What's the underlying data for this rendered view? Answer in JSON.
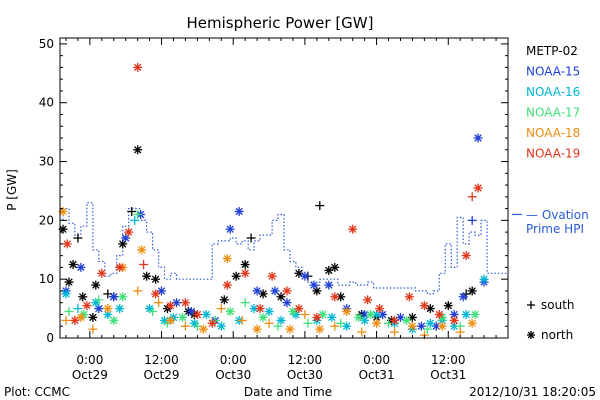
{
  "chart_data": {
    "type": "scatter",
    "title": "Hemispheric Power [GW]",
    "ylabel": "P [GW]",
    "xlabel": "Date and Time",
    "ylim": [
      0,
      51
    ],
    "xlim_hours": [
      -5,
      70
    ],
    "yticks": [
      0,
      10,
      20,
      30,
      40,
      50
    ],
    "xticks": [
      {
        "t": 0,
        "time": "0:00",
        "date": "Oct29"
      },
      {
        "t": 12,
        "time": "12:00",
        "date": "Oct29"
      },
      {
        "t": 24,
        "time": "0:00",
        "date": "Oct30"
      },
      {
        "t": 36,
        "time": "12:00",
        "date": "Oct30"
      },
      {
        "t": 48,
        "time": "0:00",
        "date": "Oct31"
      },
      {
        "t": 60,
        "time": "12:00",
        "date": "Oct31"
      }
    ],
    "x_units": "hours since 2012-10-29 00:00 UT",
    "legend_position": "right",
    "symbol_legend": [
      {
        "symbol": "+",
        "label": "south"
      },
      {
        "symbol": "*",
        "label": "north"
      }
    ],
    "footer": {
      "left": "Plot: CCMC",
      "right": "2012/10/31 18:20:05"
    },
    "ovation": {
      "label_line1": "— Ovation",
      "label_line2": "Prime HPI",
      "color": "#2a5bd7",
      "end_value": 21,
      "steps": [
        [
          -5,
          20
        ],
        [
          -4.5,
          22
        ],
        [
          -3.5,
          19.5
        ],
        [
          -2.5,
          17.5
        ],
        [
          -1.5,
          19
        ],
        [
          -0.5,
          23
        ],
        [
          0.5,
          15
        ],
        [
          1.5,
          13
        ],
        [
          2.5,
          10.5
        ],
        [
          3.5,
          11
        ],
        [
          4.5,
          14
        ],
        [
          5.5,
          19
        ],
        [
          6.5,
          22
        ],
        [
          7.5,
          22
        ],
        [
          8.5,
          20
        ],
        [
          9.5,
          18
        ],
        [
          10.5,
          15
        ],
        [
          11.5,
          12
        ],
        [
          12.5,
          10
        ],
        [
          13.5,
          11
        ],
        [
          14.5,
          10
        ],
        [
          15.5,
          10
        ],
        [
          16.5,
          10
        ],
        [
          17.5,
          10
        ],
        [
          18.5,
          10
        ],
        [
          19.5,
          10
        ],
        [
          20.5,
          16
        ],
        [
          21.5,
          16.5
        ],
        [
          22.5,
          16.5
        ],
        [
          23.5,
          17
        ],
        [
          24.5,
          16
        ],
        [
          25.5,
          16.5
        ],
        [
          26.5,
          15
        ],
        [
          27.5,
          16.5
        ],
        [
          28.5,
          17.5
        ],
        [
          29.5,
          17.5
        ],
        [
          30.5,
          20
        ],
        [
          31.5,
          21
        ],
        [
          32.5,
          15
        ],
        [
          33.5,
          13
        ],
        [
          34.5,
          12
        ],
        [
          35.5,
          10.5
        ],
        [
          36.5,
          9.5
        ],
        [
          37.5,
          9
        ],
        [
          38.5,
          10
        ],
        [
          39.5,
          10
        ],
        [
          40.5,
          10
        ],
        [
          41.5,
          9
        ],
        [
          42.5,
          9
        ],
        [
          43.5,
          9.5
        ],
        [
          44.5,
          9
        ],
        [
          45.5,
          9
        ],
        [
          46.5,
          9.5
        ],
        [
          47.5,
          8.5
        ],
        [
          48.5,
          8.5
        ],
        [
          49.5,
          8.5
        ],
        [
          50.5,
          8.5
        ],
        [
          51.5,
          8.5
        ],
        [
          52.5,
          8.5
        ],
        [
          53.5,
          8.5
        ],
        [
          54.5,
          8
        ],
        [
          55.5,
          8
        ],
        [
          56.5,
          7.5
        ],
        [
          57.5,
          8
        ],
        [
          58.5,
          11
        ],
        [
          59.5,
          16
        ],
        [
          60.5,
          12
        ],
        [
          61.5,
          20.5
        ],
        [
          62.5,
          16
        ],
        [
          63.5,
          18
        ],
        [
          64.5,
          17.5
        ],
        [
          65.5,
          20
        ],
        [
          66.5,
          11
        ]
      ]
    },
    "series": [
      {
        "name": "METP-02",
        "color": "#000000",
        "points": [
          [
            -4.5,
            18.5,
            "n"
          ],
          [
            -3.5,
            9.5,
            "n"
          ],
          [
            -2.8,
            12.5,
            "n"
          ],
          [
            -2,
            17,
            "s"
          ],
          [
            -1.2,
            7,
            "n"
          ],
          [
            0.5,
            3.5,
            "n"
          ],
          [
            1,
            9,
            "n"
          ],
          [
            3,
            7.5,
            "s"
          ],
          [
            4,
            7,
            "n"
          ],
          [
            5.5,
            16,
            "n"
          ],
          [
            7,
            21.5,
            "s"
          ],
          [
            8,
            32,
            "n"
          ],
          [
            9.5,
            10.5,
            "n"
          ],
          [
            11,
            10,
            "n"
          ],
          [
            13,
            5,
            "n"
          ],
          [
            16.5,
            4.5,
            "n"
          ],
          [
            17.5,
            4,
            "n"
          ],
          [
            22.5,
            6.5,
            "n"
          ],
          [
            24.5,
            10.5,
            "n"
          ],
          [
            26,
            12.5,
            "n"
          ],
          [
            27,
            17,
            "s"
          ],
          [
            29,
            7.5,
            "n"
          ],
          [
            32,
            7,
            "n"
          ],
          [
            35,
            11,
            "n"
          ],
          [
            36.5,
            10.5,
            "s"
          ],
          [
            38,
            8,
            "n"
          ],
          [
            38.5,
            22.5,
            "s"
          ],
          [
            40,
            11.5,
            "n"
          ],
          [
            41,
            12,
            "n"
          ],
          [
            42,
            7,
            "n"
          ],
          [
            45.5,
            4,
            "n"
          ],
          [
            48,
            3.5,
            "n"
          ],
          [
            50.5,
            3,
            "n"
          ],
          [
            54,
            3.5,
            "n"
          ],
          [
            57,
            5,
            "n"
          ],
          [
            60,
            5.5,
            "n"
          ],
          [
            63,
            7.5,
            "s"
          ],
          [
            64,
            8,
            "n"
          ]
        ]
      },
      {
        "name": "NOAA-15",
        "color": "#1e3fd6",
        "points": [
          [
            -4,
            8,
            "n"
          ],
          [
            -1.5,
            12,
            "n"
          ],
          [
            1.5,
            5,
            "n"
          ],
          [
            4,
            7,
            "n"
          ],
          [
            6,
            17,
            "n"
          ],
          [
            8.5,
            21,
            "n"
          ],
          [
            12,
            8,
            "n"
          ],
          [
            14.5,
            6,
            "n"
          ],
          [
            17,
            4.5,
            "n"
          ],
          [
            21,
            3,
            "n"
          ],
          [
            23.5,
            18.5,
            "n"
          ],
          [
            25,
            21.5,
            "n"
          ],
          [
            28,
            8,
            "n"
          ],
          [
            31,
            8,
            "n"
          ],
          [
            33,
            6,
            "n"
          ],
          [
            36,
            10.5,
            "n"
          ],
          [
            37.5,
            9,
            "n"
          ],
          [
            40,
            9,
            "n"
          ],
          [
            43,
            5,
            "n"
          ],
          [
            46,
            4,
            "n"
          ],
          [
            49,
            4,
            "n"
          ],
          [
            52,
            3.5,
            "n"
          ],
          [
            55.5,
            2,
            "n"
          ],
          [
            58,
            2,
            "n"
          ],
          [
            61,
            4,
            "n"
          ],
          [
            62.5,
            7,
            "n"
          ],
          [
            64,
            20,
            "s"
          ],
          [
            65,
            34,
            "n"
          ],
          [
            66,
            9.5,
            "n"
          ]
        ]
      },
      {
        "name": "NOAA-16",
        "color": "#00b6d4",
        "points": [
          [
            -4,
            7.5,
            "n"
          ],
          [
            -2,
            5,
            "s"
          ],
          [
            1,
            6,
            "n"
          ],
          [
            3,
            4,
            "n"
          ],
          [
            5,
            5,
            "n"
          ],
          [
            7.5,
            20,
            "s"
          ],
          [
            10,
            5,
            "n"
          ],
          [
            12.5,
            3,
            "n"
          ],
          [
            14,
            3.5,
            "n"
          ],
          [
            17.5,
            2.5,
            "n"
          ],
          [
            19.5,
            4,
            "n"
          ],
          [
            22,
            2,
            "n"
          ],
          [
            25,
            3,
            "n"
          ],
          [
            27.5,
            5,
            "n"
          ],
          [
            30,
            4.5,
            "n"
          ],
          [
            32,
            3,
            "n"
          ],
          [
            34.5,
            4,
            "n"
          ],
          [
            38,
            3,
            "n"
          ],
          [
            40.5,
            3.5,
            "n"
          ],
          [
            43,
            2,
            "n"
          ],
          [
            46,
            3,
            "n"
          ],
          [
            48,
            4,
            "n"
          ],
          [
            51,
            2.5,
            "n"
          ],
          [
            54,
            1.5,
            "n"
          ],
          [
            57,
            2.5,
            "n"
          ],
          [
            59,
            3,
            "n"
          ],
          [
            61,
            2,
            "n"
          ],
          [
            63,
            4,
            "n"
          ],
          [
            66,
            10,
            "n"
          ]
        ]
      },
      {
        "name": "NOAA-17",
        "color": "#3fe07a",
        "points": [
          [
            -3.5,
            4.5,
            "s"
          ],
          [
            -1,
            4,
            "n"
          ],
          [
            1.5,
            6.5,
            "s"
          ],
          [
            4,
            3,
            "n"
          ],
          [
            5.5,
            7,
            "n"
          ],
          [
            8,
            21,
            "s"
          ],
          [
            10.5,
            4.5,
            "s"
          ],
          [
            13,
            2.5,
            "s"
          ],
          [
            15.5,
            3.5,
            "n"
          ],
          [
            18,
            2,
            "s"
          ],
          [
            21,
            3,
            "s"
          ],
          [
            23.5,
            4.5,
            "n"
          ],
          [
            26,
            6,
            "s"
          ],
          [
            29,
            3.5,
            "n"
          ],
          [
            31.5,
            2,
            "s"
          ],
          [
            34,
            4.5,
            "n"
          ],
          [
            36.5,
            2.5,
            "s"
          ],
          [
            39,
            4,
            "n"
          ],
          [
            42,
            2.5,
            "s"
          ],
          [
            45,
            3.5,
            "n"
          ],
          [
            47,
            4,
            "n"
          ],
          [
            50,
            2.5,
            "s"
          ],
          [
            53,
            3,
            "n"
          ],
          [
            56.5,
            1.5,
            "s"
          ],
          [
            59,
            3.5,
            "n"
          ],
          [
            62,
            2,
            "s"
          ],
          [
            64.5,
            4,
            "n"
          ]
        ]
      },
      {
        "name": "NOAA-18",
        "color": "#ef8e12",
        "points": [
          [
            -4.5,
            21.5,
            "n"
          ],
          [
            -4,
            3,
            "s"
          ],
          [
            -1.5,
            3.5,
            "n"
          ],
          [
            0.5,
            1.5,
            "s"
          ],
          [
            3,
            5,
            "n"
          ],
          [
            5.5,
            12,
            "n"
          ],
          [
            8,
            8,
            "s"
          ],
          [
            8.7,
            15,
            "n"
          ],
          [
            11.5,
            6,
            "s"
          ],
          [
            13.5,
            3,
            "n"
          ],
          [
            16,
            2,
            "s"
          ],
          [
            19,
            1.5,
            "n"
          ],
          [
            22,
            5,
            "s"
          ],
          [
            23,
            13.5,
            "n"
          ],
          [
            25.5,
            3,
            "s"
          ],
          [
            28,
            1.5,
            "n"
          ],
          [
            30,
            2.5,
            "s"
          ],
          [
            33.5,
            1.5,
            "n"
          ],
          [
            36,
            4,
            "s"
          ],
          [
            38.5,
            1.5,
            "n"
          ],
          [
            41,
            2,
            "s"
          ],
          [
            43,
            4.5,
            "n"
          ],
          [
            45.5,
            1,
            "s"
          ],
          [
            48,
            2.5,
            "n"
          ],
          [
            51,
            1,
            "s"
          ],
          [
            54,
            2,
            "n"
          ],
          [
            56,
            0.5,
            "s"
          ],
          [
            59,
            2,
            "n"
          ],
          [
            62,
            1,
            "s"
          ],
          [
            64,
            2.5,
            "n"
          ]
        ]
      },
      {
        "name": "NOAA-19",
        "color": "#e2361b",
        "points": [
          [
            -3.8,
            16,
            "n"
          ],
          [
            -2.5,
            3,
            "n"
          ],
          [
            -0.5,
            5.5,
            "n"
          ],
          [
            2,
            11,
            "n"
          ],
          [
            5,
            12,
            "n"
          ],
          [
            6.5,
            18,
            "n"
          ],
          [
            8,
            46,
            "n"
          ],
          [
            9,
            12.5,
            "s"
          ],
          [
            11,
            7.5,
            "n"
          ],
          [
            13.5,
            5.5,
            "n"
          ],
          [
            16,
            6,
            "n"
          ],
          [
            18,
            4,
            "n"
          ],
          [
            20.5,
            2.5,
            "n"
          ],
          [
            23,
            9,
            "n"
          ],
          [
            26,
            11,
            "n"
          ],
          [
            28.5,
            5,
            "n"
          ],
          [
            30.5,
            10.5,
            "n"
          ],
          [
            33,
            8,
            "n"
          ],
          [
            35,
            5,
            "n"
          ],
          [
            38,
            3.5,
            "n"
          ],
          [
            41,
            7,
            "n"
          ],
          [
            44,
            18.5,
            "n"
          ],
          [
            46.5,
            6.5,
            "n"
          ],
          [
            48.5,
            5,
            "n"
          ],
          [
            51,
            3,
            "n"
          ],
          [
            53.5,
            7,
            "n"
          ],
          [
            56,
            5.5,
            "n"
          ],
          [
            58.5,
            4,
            "n"
          ],
          [
            61,
            3,
            "n"
          ],
          [
            63,
            14,
            "n"
          ],
          [
            64,
            24,
            "s"
          ],
          [
            65,
            25.5,
            "n"
          ]
        ]
      }
    ]
  }
}
